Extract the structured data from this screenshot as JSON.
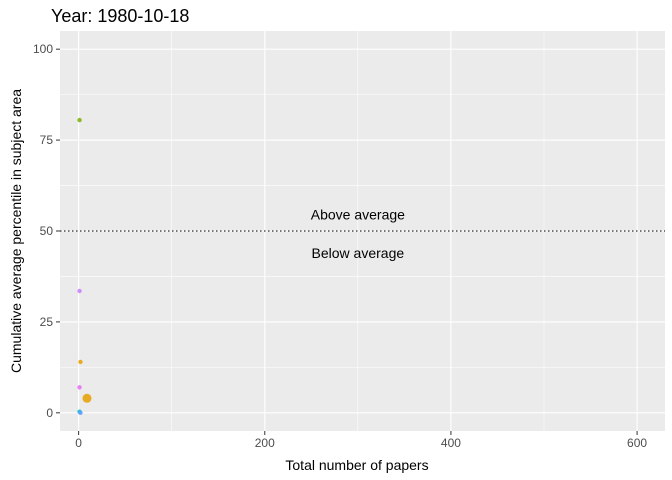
{
  "chart_data": {
    "type": "scatter",
    "title": "Year: 1980-10-18",
    "xlabel": "Total number of papers",
    "ylabel": "Cumulative average percentile in subject area",
    "xlim": [
      -20,
      630
    ],
    "ylim": [
      -5,
      105
    ],
    "x_ticks": [
      0,
      200,
      400,
      600
    ],
    "y_ticks": [
      0,
      25,
      50,
      75,
      100
    ],
    "grid": true,
    "background": "#ebebeb",
    "gridline_color": "#ffffff",
    "reference_line": {
      "y": 50,
      "style": "dotted",
      "color": "#000000"
    },
    "annotations": [
      {
        "text": "Above average",
        "x": 300,
        "y": 54.5
      },
      {
        "text": "Below average",
        "x": 300,
        "y": 44
      }
    ],
    "points": [
      {
        "x": 1,
        "y": 80.5,
        "color": "#7cae00",
        "size": 1
      },
      {
        "x": 1,
        "y": 33.5,
        "color": "#c77cff",
        "size": 1
      },
      {
        "x": 2,
        "y": 14,
        "color": "#e69f00",
        "size": 1
      },
      {
        "x": 1,
        "y": 7,
        "color": "#e76bf3",
        "size": 1
      },
      {
        "x": 9,
        "y": 4,
        "color": "#e69f00",
        "size": 3
      },
      {
        "x": 1,
        "y": 0.3,
        "color": "#00bfc4",
        "size": 1
      },
      {
        "x": 2,
        "y": 0,
        "color": "#619cff",
        "size": 1
      }
    ]
  }
}
